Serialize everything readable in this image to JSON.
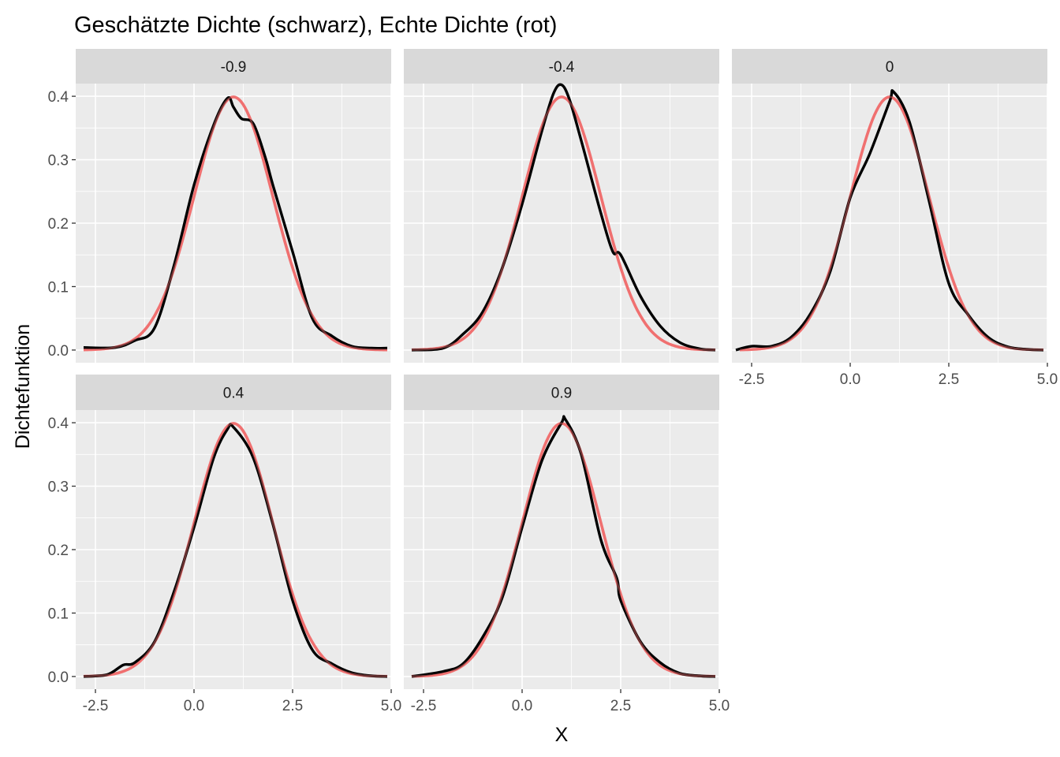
{
  "title": "Geschätzte Dichte (schwarz), Echte Dichte (rot)",
  "colors": {
    "panel_bg": "#ebebeb",
    "strip_bg": "#d9d9d9",
    "grid": "#ffffff",
    "estimated": "#000000",
    "true": "#f07070"
  },
  "chart_data": {
    "type": "line",
    "title": "Geschätzte Dichte (schwarz), Echte Dichte (rot)",
    "xlabel": "X",
    "ylabel": "Dichtefunktion",
    "xlim": [
      -3.0,
      5.0
    ],
    "ylim": [
      -0.02,
      0.42
    ],
    "x_ticks": [
      "-2.5",
      "0.0",
      "2.5",
      "5.0"
    ],
    "y_ticks": [
      "0.0",
      "0.1",
      "0.2",
      "0.3",
      "0.4"
    ],
    "grid": true,
    "true_density": {
      "distribution": "normal",
      "mean": 1.0,
      "sd": 1.0,
      "x_range": [
        -2.8,
        4.9
      ],
      "color": "#f07070"
    },
    "panels": [
      {
        "facet": "-0.9",
        "series": [
          {
            "color": "#000000",
            "x": [
              -2.8,
              -2.0,
              -1.5,
              -1.0,
              -0.5,
              0.0,
              0.5,
              0.85,
              1.0,
              1.2,
              1.5,
              1.8,
              2.0,
              2.5,
              3.0,
              3.5,
              4.0,
              4.5,
              4.9
            ],
            "y": [
              0.004,
              0.004,
              0.015,
              0.035,
              0.135,
              0.26,
              0.355,
              0.397,
              0.383,
              0.365,
              0.357,
              0.305,
              0.26,
              0.155,
              0.05,
              0.022,
              0.006,
              0.003,
              0.003
            ]
          }
        ]
      },
      {
        "facet": "-0.4",
        "series": [
          {
            "color": "#000000",
            "x": [
              -2.8,
              -2.0,
              -1.5,
              -1.0,
              -0.5,
              0.0,
              0.5,
              0.8,
              1.0,
              1.2,
              1.5,
              2.0,
              2.3,
              2.5,
              3.0,
              3.5,
              4.0,
              4.5,
              4.9
            ],
            "y": [
              0.0,
              0.003,
              0.025,
              0.06,
              0.13,
              0.23,
              0.345,
              0.405,
              0.418,
              0.395,
              0.33,
              0.215,
              0.155,
              0.15,
              0.085,
              0.038,
              0.012,
              0.002,
              0.0
            ]
          }
        ]
      },
      {
        "facet": "0",
        "series": [
          {
            "color": "#000000",
            "x": [
              -2.9,
              -2.5,
              -2.0,
              -1.5,
              -1.0,
              -0.5,
              0.0,
              0.5,
              1.0,
              1.1,
              1.5,
              2.0,
              2.5,
              3.0,
              3.5,
              4.0,
              4.5,
              4.9
            ],
            "y": [
              0.0,
              0.006,
              0.006,
              0.02,
              0.058,
              0.125,
              0.24,
              0.31,
              0.392,
              0.407,
              0.36,
              0.235,
              0.105,
              0.055,
              0.02,
              0.005,
              0.001,
              0.0
            ]
          }
        ]
      },
      {
        "facet": "0.4",
        "series": [
          {
            "color": "#000000",
            "x": [
              -2.8,
              -2.2,
              -1.8,
              -1.5,
              -1.0,
              -0.5,
              0.0,
              0.5,
              0.85,
              1.0,
              1.5,
              2.0,
              2.5,
              3.0,
              3.5,
              4.0,
              4.5,
              4.9
            ],
            "y": [
              0.0,
              0.003,
              0.018,
              0.022,
              0.055,
              0.135,
              0.235,
              0.345,
              0.39,
              0.393,
              0.345,
              0.24,
              0.12,
              0.042,
              0.02,
              0.006,
              0.001,
              0.0
            ]
          }
        ]
      },
      {
        "facet": "0.9",
        "series": [
          {
            "color": "#000000",
            "x": [
              -2.8,
              -2.0,
              -1.5,
              -1.0,
              -0.5,
              0.0,
              0.5,
              1.0,
              1.1,
              1.5,
              2.0,
              2.4,
              2.5,
              3.0,
              3.5,
              4.0,
              4.5,
              4.9
            ],
            "y": [
              0.0,
              0.008,
              0.02,
              0.062,
              0.125,
              0.235,
              0.34,
              0.4,
              0.405,
              0.35,
              0.215,
              0.155,
              0.12,
              0.055,
              0.022,
              0.005,
              0.001,
              0.0
            ]
          }
        ]
      }
    ]
  }
}
